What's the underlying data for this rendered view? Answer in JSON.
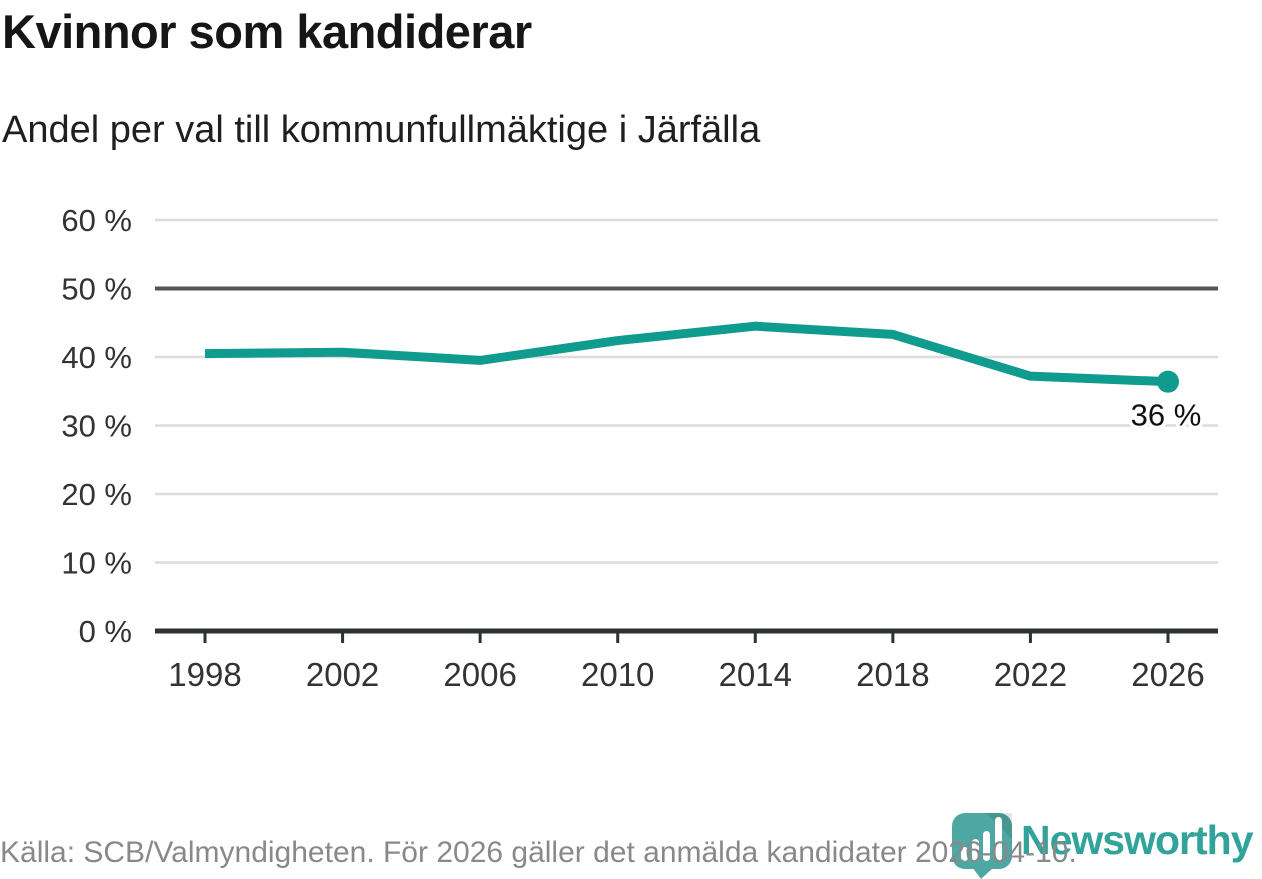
{
  "header": {
    "title": "Kvinnor som kandiderar",
    "subtitle": "Andel per val till kommunfullmäktige i Järfälla"
  },
  "footer": {
    "source": "Källa: SCB/Valmyndigheten. För 2026 gäller det anmälda kandidater 2026-04-10.",
    "brand": "Newsworthy",
    "logo_icon": "newsworthy-speech-bubble-bar-chart-icon"
  },
  "colors": {
    "line": "#0f9c8e",
    "end_dot": "#0f9c8e",
    "grid": "#dcdcdc",
    "grid_highlight": "#52565b",
    "axis": "#2f3235",
    "tick_text": "#333333",
    "title_text": "#161616",
    "footer_text": "#898989",
    "logo_bubble": "#4ea7a2",
    "wordmark": "#31a39b"
  },
  "chart_data": {
    "type": "line",
    "title": "Kvinnor som kandiderar",
    "subtitle": "Andel per val till kommunfullmäktige i Järfälla",
    "x": [
      1998,
      2002,
      2006,
      2010,
      2014,
      2018,
      2022,
      2026
    ],
    "values": [
      40.5,
      40.7,
      39.5,
      42.4,
      44.5,
      43.3,
      37.2,
      36.4
    ],
    "xlabel": "",
    "ylabel": "",
    "ylim": [
      0,
      60
    ],
    "yticks": [
      0,
      10,
      20,
      30,
      40,
      50,
      60
    ],
    "ytick_format": "{v} %",
    "grid": true,
    "highlight_gridline": 50,
    "end_label": "36 %",
    "legend": "none"
  }
}
